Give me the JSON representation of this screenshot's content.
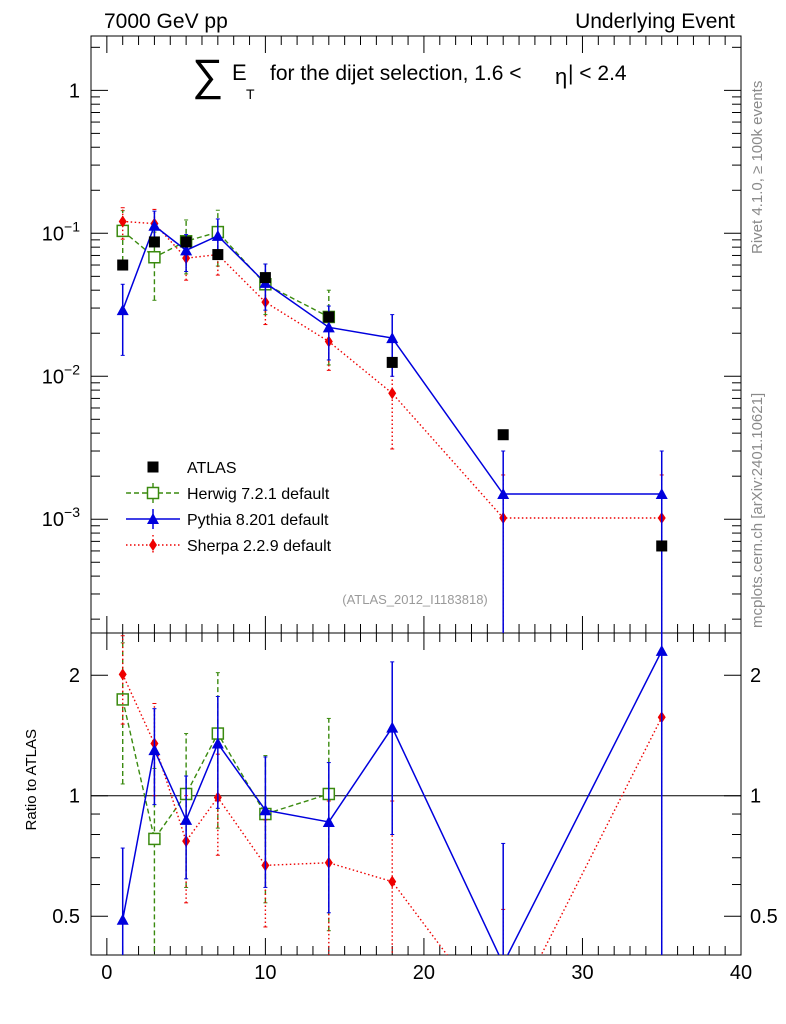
{
  "header": {
    "left": "7000 GeV pp",
    "right": "Underlying Event"
  },
  "title": {
    "sum_symbol": "∑",
    "var": "E",
    "sub": "T",
    "text": "for the dijet selection, 1.6 <",
    "eta": "η",
    "tail": "| < 2.4"
  },
  "side_labels": {
    "rivet": "Rivet 4.1.0, ≥ 100k events",
    "mcplots": "mcplots.cern.ch [arXiv:2401.10621]"
  },
  "analysis_id": "(ATLAS_2012_I1183818)",
  "chart_data": [
    {
      "type": "scatter",
      "scale": "log",
      "title": "∑ E_T for the dijet selection, 1.6 < |η| < 2.4",
      "xlabel": "",
      "ylabel": "",
      "xlim": [
        -1,
        40
      ],
      "ylim": [
        0.00016,
        2.4
      ],
      "yticks": [
        {
          "value": 1,
          "label": "1"
        },
        {
          "value": 0.1,
          "label": "10^-1"
        },
        {
          "value": 0.01,
          "label": "10^-2"
        },
        {
          "value": 0.001,
          "label": "10^-3"
        }
      ],
      "legend_position": "middle-left",
      "series": [
        {
          "name": "ATLAS",
          "style": "data",
          "color": "#000000",
          "x": [
            1,
            3,
            5,
            7,
            10,
            14,
            18,
            25,
            35
          ],
          "y": [
            0.06,
            0.087,
            0.087,
            0.071,
            0.049,
            0.026,
            0.0125,
            0.0039,
            0.00065
          ]
        },
        {
          "name": "Herwig 7.2.1 default",
          "style": "herwig",
          "color": "#3a8a0f",
          "x": [
            1,
            3,
            5,
            7,
            10,
            14
          ],
          "y": [
            0.104,
            0.068,
            0.088,
            0.102,
            0.044,
            0.026
          ],
          "err": [
            0.04,
            0.034,
            0.036,
            0.043,
            0.017,
            0.014
          ]
        },
        {
          "name": "Pythia 8.201 default",
          "style": "pythia",
          "color": "#0000dd",
          "x": [
            1,
            3,
            5,
            7,
            10,
            14,
            18,
            25,
            35
          ],
          "y": [
            0.029,
            0.113,
            0.076,
            0.096,
            0.045,
            0.022,
            0.0185,
            0.0015,
            0.0015
          ],
          "err": [
            0.015,
            0.03,
            0.022,
            0.03,
            0.016,
            0.009,
            0.0085,
            0.0015,
            0.0015
          ]
        },
        {
          "name": "Sherpa 2.2.9 default",
          "style": "sherpa",
          "color": "#ee0000",
          "x": [
            1,
            3,
            5,
            7,
            10,
            14,
            18,
            25,
            35
          ],
          "y": [
            0.121,
            0.117,
            0.067,
            0.071,
            0.033,
            0.0175,
            0.0076,
            0.00102,
            0.00102
          ],
          "err": [
            0.03,
            0.03,
            0.02,
            0.02,
            0.01,
            0.0065,
            0.0045,
            0.00102,
            0.00102
          ]
        }
      ]
    },
    {
      "type": "line",
      "scale": "log",
      "ylabel": "Ratio to ATLAS",
      "xlim": [
        -1,
        40
      ],
      "ylim": [
        0.4,
        2.55
      ],
      "xticks": [
        0,
        10,
        20,
        30,
        40
      ],
      "yticks": [
        {
          "value": 0.5,
          "label": "0.5"
        },
        {
          "value": 1,
          "label": "1"
        },
        {
          "value": 2,
          "label": "2"
        }
      ],
      "reference_line": 1,
      "series": [
        {
          "name": "Herwig 7.2.1 default",
          "style": "herwig",
          "color": "#3a8a0f",
          "x": [
            1,
            3,
            5,
            7,
            10,
            14
          ],
          "y": [
            1.74,
            0.78,
            1.01,
            1.43,
            0.9,
            1.01
          ],
          "err": [
            0.67,
            0.39,
            0.42,
            0.6,
            0.36,
            0.55
          ]
        },
        {
          "name": "Pythia 8.201 default",
          "style": "pythia",
          "color": "#0000dd",
          "x": [
            1,
            3,
            5,
            7,
            10,
            14,
            18,
            25,
            35
          ],
          "y": [
            0.49,
            1.3,
            0.87,
            1.35,
            0.92,
            0.86,
            1.48,
            0.38,
            2.3
          ],
          "err": [
            0.25,
            0.35,
            0.25,
            0.42,
            0.33,
            0.35,
            0.68,
            0.38,
            2.3
          ]
        },
        {
          "name": "Sherpa 2.2.9 default",
          "style": "sherpa",
          "color": "#ee0000",
          "x": [
            1,
            3,
            5,
            7,
            10,
            14,
            18,
            25,
            35
          ],
          "y": [
            2.01,
            1.35,
            0.77,
            0.99,
            0.67,
            0.68,
            0.61,
            0.26,
            1.57
          ],
          "err": [
            0.5,
            0.35,
            0.23,
            0.28,
            0.2,
            0.29,
            0.36,
            0.26,
            1.57
          ]
        }
      ]
    }
  ]
}
